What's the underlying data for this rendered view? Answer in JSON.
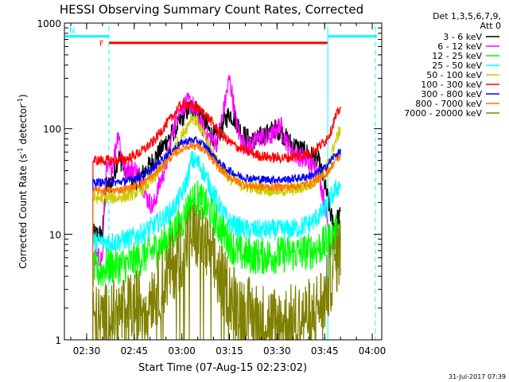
{
  "chart_data": {
    "type": "line",
    "title": "HESSI Observing Summary Count Rates, Corrected",
    "xlabel": "Start Time (07-Aug-15 02:23:02)",
    "ylabel_main": "Corrected Count Rate (s",
    "ylabel_sup1": "-1",
    "ylabel_mid": " detector",
    "ylabel_sup2": "-1",
    "ylabel_end": ")",
    "xlim_minutes": [
      0,
      100
    ],
    "ylim": [
      1,
      1000
    ],
    "yscale": "log",
    "x_ticks": [
      {
        "label": "02:30",
        "minute": 7
      },
      {
        "label": "02:45",
        "minute": 22
      },
      {
        "label": "03:00",
        "minute": 37
      },
      {
        "label": "03:15",
        "minute": 52
      },
      {
        "label": "03:30",
        "minute": 67
      },
      {
        "label": "03:45",
        "minute": 82
      },
      {
        "label": "04:00",
        "minute": 97
      }
    ],
    "y_ticks": [
      {
        "label": "1",
        "value": 1
      },
      {
        "label": "10",
        "value": 10
      },
      {
        "label": "100",
        "value": 100
      },
      {
        "label": "1000",
        "value": 1000
      }
    ],
    "legend": {
      "header": "Det 1,3,5,6,7,9,",
      "subheader": "Att 0",
      "placement": "right"
    },
    "timestamp": "31-Jul-2017 07:39",
    "flags": [
      {
        "label": "F",
        "color": "#ff0000",
        "x_start": 14,
        "x_end": 83,
        "level": 650
      },
      {
        "label": "N",
        "color": "#00ffff",
        "x_start": 0,
        "x_end": 14,
        "level": 750
      },
      {
        "label": "",
        "color": "#00ffff",
        "x_start": 83,
        "x_end": 98.5,
        "level": 750
      }
    ],
    "vlines": [
      {
        "minute": 14,
        "style": "dashed",
        "color": "#00ffff"
      },
      {
        "minute": 83,
        "style": "solid",
        "color": "#00ffff"
      },
      {
        "minute": 98,
        "style": "dashed",
        "color": "#00ffff"
      }
    ],
    "data_start_minute": 9,
    "data_end_minute": 87,
    "series": [
      {
        "name": "3 - 6 keV",
        "color": "#000000",
        "x": [
          9,
          12,
          13,
          15,
          17,
          18,
          19,
          20,
          22,
          24,
          26,
          28,
          30,
          32,
          34,
          36,
          38,
          40,
          42,
          44,
          46,
          48,
          50,
          52,
          54,
          56,
          58,
          60,
          62,
          64,
          66,
          68,
          70,
          72,
          74,
          76,
          78,
          80,
          82,
          84,
          85,
          86,
          87
        ],
        "y": [
          10,
          10,
          28,
          30,
          55,
          48,
          40,
          38,
          30,
          35,
          42,
          50,
          60,
          75,
          90,
          110,
          140,
          160,
          150,
          120,
          90,
          80,
          110,
          140,
          120,
          90,
          80,
          75,
          85,
          90,
          100,
          95,
          80,
          70,
          65,
          60,
          55,
          50,
          30,
          15,
          12,
          14,
          15
        ],
        "noise": 0.1
      },
      {
        "name": "6 - 12 keV",
        "color": "#ff00ff",
        "x": [
          9,
          12,
          13,
          15,
          17,
          18,
          19,
          20,
          22,
          24,
          26,
          28,
          30,
          32,
          34,
          36,
          38,
          40,
          42,
          44,
          46,
          48,
          50,
          52,
          53,
          54,
          55,
          56,
          58,
          60,
          62,
          64,
          66,
          68,
          70,
          72,
          74,
          76,
          78,
          80,
          82,
          84,
          85,
          86,
          87
        ],
        "y": [
          6,
          6,
          40,
          42,
          95,
          55,
          40,
          40,
          42,
          35,
          22,
          18,
          30,
          45,
          90,
          150,
          170,
          180,
          130,
          95,
          80,
          75,
          140,
          300,
          200,
          120,
          90,
          75,
          70,
          75,
          85,
          80,
          90,
          110,
          75,
          60,
          55,
          50,
          45,
          40,
          20,
          8,
          9,
          10,
          10
        ],
        "noise": 0.1
      },
      {
        "name": "12 - 25 keV",
        "color": "#00ff00",
        "x": [
          9,
          12,
          13,
          16,
          20,
          24,
          28,
          31,
          34,
          37,
          39,
          40,
          42,
          44,
          46,
          48,
          50,
          52,
          54,
          56,
          58,
          62,
          66,
          70,
          74,
          78,
          82,
          84,
          85,
          87
        ],
        "y": [
          4.5,
          4.5,
          5,
          5,
          5.2,
          6,
          7,
          8,
          10,
          13,
          18,
          20,
          22,
          19,
          16,
          13,
          10.5,
          8.5,
          7,
          6.5,
          6.3,
          6.2,
          6.3,
          6.5,
          6.7,
          7,
          8,
          9,
          10,
          11
        ],
        "noise": 0.18
      },
      {
        "name": "25 - 50 keV",
        "color": "#00ffff",
        "x": [
          9,
          12,
          13,
          16,
          20,
          24,
          28,
          31,
          34,
          37,
          39,
          40,
          42,
          44,
          46,
          48,
          50,
          52,
          54,
          56,
          58,
          62,
          66,
          70,
          74,
          78,
          82,
          84,
          85,
          87
        ],
        "y": [
          8.5,
          8.5,
          8.5,
          8.5,
          9,
          10,
          12,
          14,
          17,
          24,
          35,
          50,
          48,
          38,
          28,
          21,
          16,
          13,
          12,
          11.5,
          11,
          11,
          11,
          11,
          11.5,
          13,
          17,
          22,
          25,
          30
        ],
        "noise": 0.1
      },
      {
        "name": "50 - 100 keV",
        "color": "#cccc00",
        "x": [
          9,
          12,
          13,
          16,
          20,
          24,
          28,
          31,
          34,
          37,
          39,
          40,
          42,
          44,
          46,
          48,
          50,
          52,
          54,
          56,
          58,
          62,
          66,
          70,
          74,
          78,
          82,
          84,
          85,
          87
        ],
        "y": [
          22,
          22,
          22,
          22,
          23,
          26,
          33,
          45,
          62,
          85,
          110,
          130,
          115,
          85,
          65,
          50,
          40,
          34,
          31,
          29,
          28,
          27,
          26,
          26,
          27,
          30,
          40,
          55,
          70,
          100
        ],
        "noise": 0.06
      },
      {
        "name": "100 - 300 keV",
        "color": "#ff0000",
        "x": [
          9,
          12,
          13,
          16,
          20,
          24,
          28,
          31,
          34,
          36,
          38,
          40,
          42,
          44,
          46,
          48,
          50,
          52,
          54,
          56,
          58,
          62,
          66,
          70,
          74,
          78,
          82,
          84,
          85,
          87
        ],
        "y": [
          50,
          50,
          50,
          50,
          52,
          60,
          75,
          100,
          130,
          160,
          170,
          165,
          155,
          140,
          120,
          100,
          85,
          75,
          68,
          64,
          60,
          55,
          53,
          53,
          55,
          60,
          75,
          95,
          120,
          160
        ],
        "noise": 0.05
      },
      {
        "name": "300 - 800 keV",
        "color": "#0000ff",
        "x": [
          9,
          12,
          13,
          16,
          20,
          24,
          28,
          31,
          34,
          36,
          38,
          40,
          42,
          44,
          46,
          48,
          50,
          52,
          54,
          56,
          58,
          62,
          66,
          70,
          74,
          78,
          82,
          84,
          85,
          87
        ],
        "y": [
          31,
          31,
          31,
          31,
          32,
          35,
          42,
          52,
          62,
          70,
          75,
          78,
          76,
          70,
          60,
          50,
          44,
          40,
          37,
          35,
          34,
          33,
          33,
          33,
          34,
          36,
          42,
          50,
          55,
          60
        ],
        "noise": 0.04
      },
      {
        "name": "800 - 7000 keV",
        "color": "#ff7700",
        "x": [
          9,
          12,
          13,
          16,
          20,
          24,
          28,
          31,
          34,
          36,
          38,
          40,
          42,
          44,
          46,
          48,
          50,
          52,
          54,
          56,
          58,
          62,
          66,
          70,
          74,
          78,
          82,
          84,
          85,
          87
        ],
        "y": [
          26,
          26,
          26,
          26,
          27,
          30,
          36,
          45,
          55,
          62,
          67,
          70,
          68,
          62,
          53,
          45,
          39,
          35,
          32,
          30,
          29,
          28,
          28,
          28,
          29,
          31,
          36,
          43,
          48,
          55
        ],
        "noise": 0.04
      },
      {
        "name": "7000 - 20000 keV",
        "color": "#808000",
        "x": [
          9,
          12,
          13,
          16,
          20,
          24,
          28,
          31,
          34,
          37,
          39,
          40,
          42,
          44,
          46,
          48,
          50,
          52,
          54,
          56,
          58,
          62,
          66,
          70,
          74,
          78,
          82,
          84,
          85,
          87
        ],
        "y": [
          1.5,
          1.5,
          1.6,
          1.7,
          1.9,
          2.2,
          2.8,
          3.5,
          5,
          7,
          9,
          10,
          9.5,
          8,
          6,
          4.5,
          3.5,
          2.8,
          2.3,
          2,
          1.8,
          1.6,
          1.5,
          1.5,
          1.6,
          1.8,
          2.5,
          4,
          5.5,
          7
        ],
        "noise": 0.35
      }
    ]
  }
}
